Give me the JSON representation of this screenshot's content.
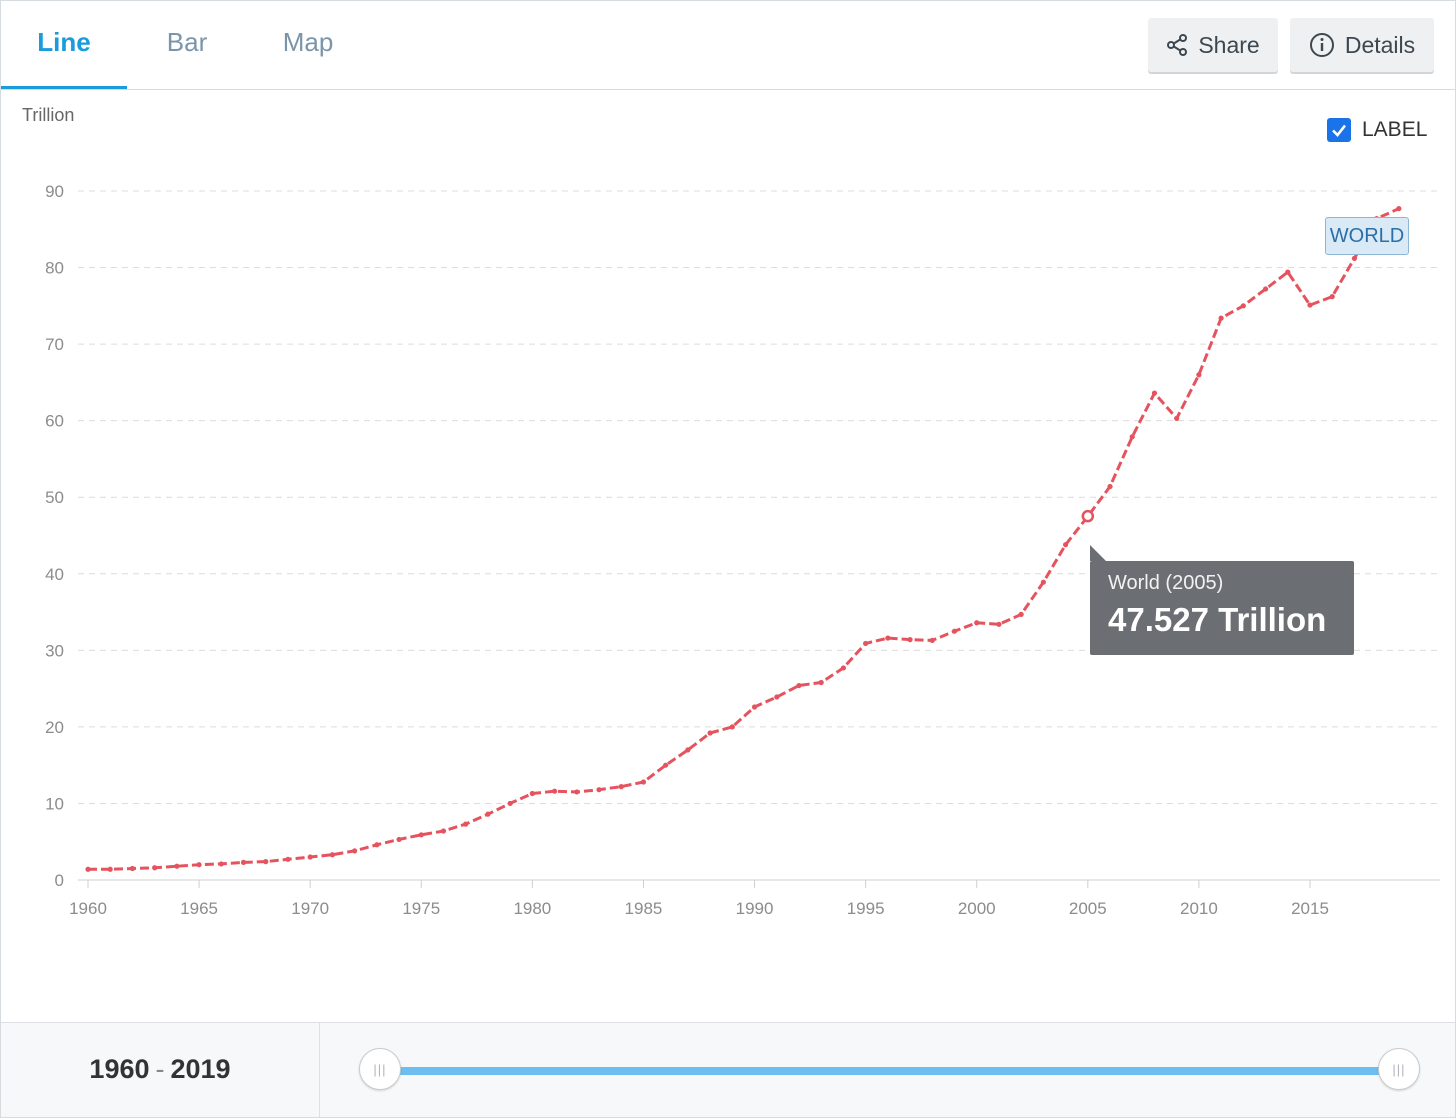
{
  "tabs": [
    {
      "label": "Line",
      "active": true
    },
    {
      "label": "Bar",
      "active": false
    },
    {
      "label": "Map",
      "active": false
    }
  ],
  "toolbar": {
    "share_label": "Share",
    "details_label": "Details",
    "share_icon": "share-icon",
    "details_icon": "info-icon"
  },
  "label_toggle": {
    "label": "LABEL",
    "checked": true
  },
  "tooltip": {
    "title": "World (2005)",
    "value": "47.527 Trillion"
  },
  "range": {
    "start": "1960",
    "separator": "-",
    "end": "2019"
  },
  "colors": {
    "series": "#e5535e",
    "accent": "#1a9bdc",
    "track": "#6dbef0",
    "tooltip_bg": "#6b6e72"
  },
  "chart_data": {
    "type": "line",
    "unit": "Trillion",
    "ylim": [
      0,
      90
    ],
    "yticks": [
      0,
      10,
      20,
      30,
      40,
      50,
      60,
      70,
      80,
      90
    ],
    "xlim": [
      1960,
      2019
    ],
    "xticks": [
      1960,
      1965,
      1970,
      1975,
      1980,
      1985,
      1990,
      1995,
      2000,
      2005,
      2010,
      2015
    ],
    "grid": true,
    "series": [
      {
        "name": "WORLD",
        "x": [
          1960,
          1961,
          1962,
          1963,
          1964,
          1965,
          1966,
          1967,
          1968,
          1969,
          1970,
          1971,
          1972,
          1973,
          1974,
          1975,
          1976,
          1977,
          1978,
          1979,
          1980,
          1981,
          1982,
          1983,
          1984,
          1985,
          1986,
          1987,
          1988,
          1989,
          1990,
          1991,
          1992,
          1993,
          1994,
          1995,
          1996,
          1997,
          1998,
          1999,
          2000,
          2001,
          2002,
          2003,
          2004,
          2005,
          2006,
          2007,
          2008,
          2009,
          2010,
          2011,
          2012,
          2013,
          2014,
          2015,
          2016,
          2017,
          2018,
          2019
        ],
        "values": [
          1.4,
          1.4,
          1.5,
          1.6,
          1.8,
          2.0,
          2.1,
          2.3,
          2.4,
          2.7,
          3.0,
          3.3,
          3.8,
          4.6,
          5.3,
          5.9,
          6.4,
          7.3,
          8.6,
          10.0,
          11.3,
          11.6,
          11.5,
          11.8,
          12.2,
          12.8,
          15.0,
          17.0,
          19.2,
          20.0,
          22.6,
          23.9,
          25.4,
          25.8,
          27.7,
          30.9,
          31.6,
          31.4,
          31.3,
          32.5,
          33.6,
          33.4,
          34.7,
          38.9,
          43.8,
          47.5,
          51.4,
          57.9,
          63.6,
          60.3,
          66.0,
          73.4,
          75.0,
          77.2,
          79.4,
          75.1,
          76.2,
          81.2,
          86.4,
          87.7
        ]
      }
    ],
    "highlight": {
      "x": 2005,
      "y": 47.527
    }
  }
}
